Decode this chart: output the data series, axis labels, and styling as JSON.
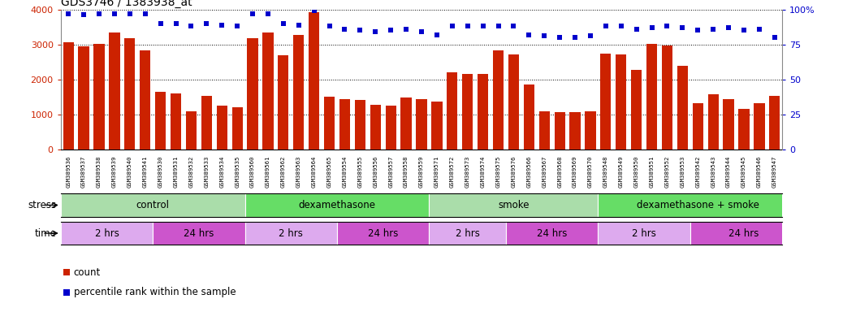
{
  "title": "GDS3746 / 1383938_at",
  "samples": [
    "GSM389536",
    "GSM389537",
    "GSM389538",
    "GSM389539",
    "GSM389540",
    "GSM389541",
    "GSM389530",
    "GSM389531",
    "GSM389532",
    "GSM389533",
    "GSM389534",
    "GSM389535",
    "GSM389560",
    "GSM389561",
    "GSM389562",
    "GSM389563",
    "GSM389564",
    "GSM389565",
    "GSM389554",
    "GSM389555",
    "GSM389556",
    "GSM389557",
    "GSM389558",
    "GSM389559",
    "GSM389571",
    "GSM389572",
    "GSM389573",
    "GSM389574",
    "GSM389575",
    "GSM389576",
    "GSM389566",
    "GSM389567",
    "GSM389568",
    "GSM389569",
    "GSM389570",
    "GSM389548",
    "GSM389549",
    "GSM389550",
    "GSM389551",
    "GSM389552",
    "GSM389553",
    "GSM389542",
    "GSM389543",
    "GSM389544",
    "GSM389545",
    "GSM389546",
    "GSM389547"
  ],
  "counts": [
    3060,
    2950,
    3020,
    3340,
    3190,
    2820,
    1650,
    1600,
    1100,
    1530,
    1260,
    1220,
    3190,
    3330,
    2700,
    3280,
    3920,
    1510,
    1450,
    1420,
    1290,
    1260,
    1490,
    1450,
    1380,
    2200,
    2150,
    2170,
    2830,
    2720,
    1870,
    1090,
    1080,
    1070,
    1090,
    2740,
    2720,
    2270,
    3010,
    2980,
    2400,
    1320,
    1580,
    1440,
    1160,
    1330,
    1530
  ],
  "percentiles": [
    97,
    96,
    97,
    97,
    97,
    97,
    90,
    90,
    88,
    90,
    89,
    88,
    97,
    97,
    90,
    89,
    99,
    88,
    86,
    85,
    84,
    85,
    86,
    84,
    82,
    88,
    88,
    88,
    88,
    88,
    82,
    81,
    80,
    80,
    81,
    88,
    88,
    86,
    87,
    88,
    87,
    85,
    86,
    87,
    85,
    86,
    80
  ],
  "bar_color": "#cc2200",
  "dot_color": "#0000cc",
  "ylim_left": [
    0,
    4000
  ],
  "ylim_right": [
    0,
    100
  ],
  "yticks_left": [
    0,
    1000,
    2000,
    3000,
    4000
  ],
  "yticks_right": [
    0,
    25,
    50,
    75,
    100
  ],
  "stress_groups": [
    {
      "label": "control",
      "start": 0,
      "end": 12,
      "color": "#aaddaa"
    },
    {
      "label": "dexamethasone",
      "start": 12,
      "end": 24,
      "color": "#66dd66"
    },
    {
      "label": "smoke",
      "start": 24,
      "end": 35,
      "color": "#aaddaa"
    },
    {
      "label": "dexamethasone + smoke",
      "start": 35,
      "end": 48,
      "color": "#66dd66"
    }
  ],
  "time_groups": [
    {
      "label": "2 hrs",
      "start": 0,
      "end": 6,
      "color": "#ddaaee"
    },
    {
      "label": "24 hrs",
      "start": 6,
      "end": 12,
      "color": "#cc55cc"
    },
    {
      "label": "2 hrs",
      "start": 12,
      "end": 18,
      "color": "#ddaaee"
    },
    {
      "label": "24 hrs",
      "start": 18,
      "end": 24,
      "color": "#cc55cc"
    },
    {
      "label": "2 hrs",
      "start": 24,
      "end": 29,
      "color": "#ddaaee"
    },
    {
      "label": "24 hrs",
      "start": 29,
      "end": 35,
      "color": "#cc55cc"
    },
    {
      "label": "2 hrs",
      "start": 35,
      "end": 41,
      "color": "#ddaaee"
    },
    {
      "label": "24 hrs",
      "start": 41,
      "end": 48,
      "color": "#cc55cc"
    }
  ],
  "legend_items": [
    {
      "label": "count",
      "color": "#cc2200"
    },
    {
      "label": "percentile rank within the sample",
      "color": "#0000cc"
    }
  ],
  "tick_bg_color": "#dddddd",
  "stress_label": "stress",
  "time_label": "time"
}
